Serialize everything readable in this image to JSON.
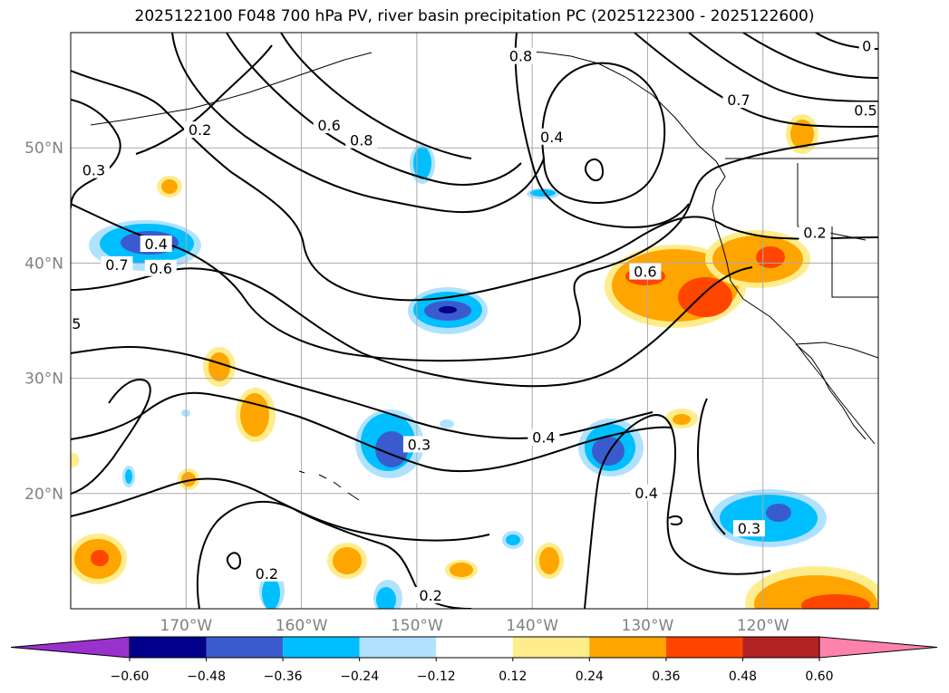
{
  "title": "2025122100 F048 700 hPa PV, river basin precipitation PC (2025122300 - 2025122600)",
  "map": {
    "lon_range": [
      -180,
      -110
    ],
    "lat_range": [
      10,
      60
    ],
    "lon_ticks": [
      {
        "lon": -170,
        "label": "170°W"
      },
      {
        "lon": -160,
        "label": "160°W"
      },
      {
        "lon": -150,
        "label": "150°W"
      },
      {
        "lon": -140,
        "label": "140°W"
      },
      {
        "lon": -130,
        "label": "130°W"
      },
      {
        "lon": -120,
        "label": "120°W"
      }
    ],
    "lat_ticks": [
      {
        "lat": 20,
        "label": "20°N"
      },
      {
        "lat": 30,
        "label": "30°N"
      },
      {
        "lat": 40,
        "label": "40°N"
      },
      {
        "lat": 50,
        "label": "50°N"
      }
    ],
    "grid": true,
    "contour_labels": [
      {
        "lon": -178.0,
        "lat": 48.0,
        "text": "0.3"
      },
      {
        "lon": -168.8,
        "lat": 51.5,
        "text": "0.2"
      },
      {
        "lon": -176.0,
        "lat": 39.8,
        "text": "0.7"
      },
      {
        "lon": -172.2,
        "lat": 39.5,
        "text": "0.6"
      },
      {
        "lon": -172.6,
        "lat": 41.6,
        "text": "0.4"
      },
      {
        "lon": -179.5,
        "lat": 34.7,
        "text": "5"
      },
      {
        "lon": -157.6,
        "lat": 51.9,
        "text": "0.6"
      },
      {
        "lon": -154.8,
        "lat": 50.6,
        "text": "0.8"
      },
      {
        "lon": -141.0,
        "lat": 57.9,
        "text": "0.8"
      },
      {
        "lon": -138.3,
        "lat": 50.9,
        "text": "0.4"
      },
      {
        "lon": -130.2,
        "lat": 39.2,
        "text": "0.6"
      },
      {
        "lon": -122.1,
        "lat": 54.1,
        "text": "0.7"
      },
      {
        "lon": -111.1,
        "lat": 53.2,
        "text": "0.5"
      },
      {
        "lon": -111.0,
        "lat": 58.8,
        "text": "0"
      },
      {
        "lon": -115.5,
        "lat": 42.6,
        "text": "0.2"
      },
      {
        "lon": -149.8,
        "lat": 24.2,
        "text": "0.3"
      },
      {
        "lon": -139.0,
        "lat": 24.8,
        "text": "0.4"
      },
      {
        "lon": -130.1,
        "lat": 20.0,
        "text": "0.4"
      },
      {
        "lon": -121.2,
        "lat": 16.9,
        "text": "0.3"
      },
      {
        "lon": -163.0,
        "lat": 13.0,
        "text": "0.2"
      },
      {
        "lon": -148.8,
        "lat": 11.1,
        "text": "0.2"
      }
    ]
  },
  "colorbar": {
    "colors": [
      "#9932CC",
      "#00008B",
      "#3A5BCD",
      "#00BFFF",
      "#B0E2FF",
      "#FFFFFF",
      "#FFEC8B",
      "#FFA500",
      "#FF4500",
      "#B22222",
      "#FF82AB"
    ],
    "tick_labels": [
      "−0.60",
      "−0.48",
      "−0.36",
      "−0.24",
      "−0.12",
      "0.12",
      "0.24",
      "0.36",
      "0.48",
      "0.60"
    ]
  }
}
